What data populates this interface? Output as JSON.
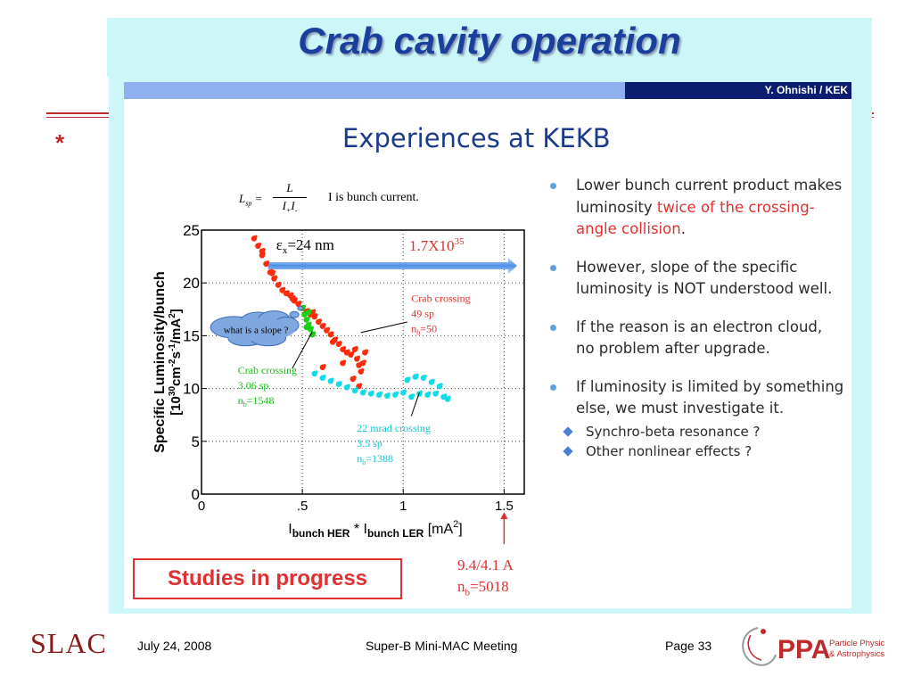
{
  "title": "Crab cavity operation",
  "star": "*",
  "inner_slide": {
    "author": "Y. Ohnishi / KEK",
    "subtitle": "Experiences at KEKB",
    "formula_note": "I is bunch current.",
    "formula": {
      "lhs": "L",
      "lhs_sub": "sp",
      "num": "L",
      "den": "I",
      "den_sub1": "+",
      "den_sub2": "-"
    },
    "bullets": [
      {
        "parts": [
          {
            "text": "Lower bunch current product makes luminosity ",
            "red": false
          },
          {
            "text": "twice of the crossing-angle collision",
            "red": true
          },
          {
            "text": ".",
            "red": false
          }
        ]
      },
      {
        "parts": [
          {
            "text": "However, slope of the specific luminosity is NOT understood well.",
            "red": false
          }
        ]
      },
      {
        "parts": [
          {
            "text": "If the reason is an electron cloud, no problem after upgrade.",
            "red": false
          }
        ]
      },
      {
        "parts": [
          {
            "text": "If luminosity is limited by something else, we must investigate it.",
            "red": false
          }
        ]
      }
    ],
    "sub_bullets": [
      "Synchro-beta resonance ?",
      "Other nonlinear effects ?"
    ],
    "studies_label": "Studies in progress",
    "target_note": {
      "line1": "9.4/4.1 A",
      "line2_pre": "n",
      "line2_sub": "b",
      "line2_post": "=5018"
    }
  },
  "chart_data": {
    "type": "scatter",
    "xlabel": {
      "I": "I",
      "sub1": "bunch HER",
      "star": " * ",
      "I2": "I",
      "sub2": "bunch LER",
      "unit": " [mA",
      "sup": "2",
      "close": "]"
    },
    "ylabel": {
      "line1": "Specific Luminosity/bunch",
      "line2_pre": "[10",
      "line2_sup1": "30",
      "line2_mid": "cm",
      "line2_sup2": "-2",
      "line2_s": "s",
      "line2_sup3": "-1",
      "line2_post": "/mA",
      "line2_sup4": "2",
      "line2_close": "]"
    },
    "xlim": [
      0,
      1.6
    ],
    "ylim": [
      0,
      25
    ],
    "x_ticks": [
      {
        "v": 0,
        "label": "0"
      },
      {
        "v": 0.5,
        "label": ".5"
      },
      {
        "v": 1,
        "label": "1"
      },
      {
        "v": 1.5,
        "label": "1.5"
      }
    ],
    "y_ticks": [
      {
        "v": 0,
        "label": "0"
      },
      {
        "v": 5,
        "label": "5"
      },
      {
        "v": 10,
        "label": "10"
      },
      {
        "v": 15,
        "label": "15"
      },
      {
        "v": 20,
        "label": "20"
      },
      {
        "v": 25,
        "label": "25"
      }
    ],
    "grid": "dotted",
    "arrow_label": {
      "pre": "ε",
      "sub": "x",
      "post": "=24 nm"
    },
    "lumi_label": {
      "pre": "1.7X10",
      "sup": "35"
    },
    "cloud_label": "what is a slope ?",
    "series": [
      {
        "name": "Crab crossing",
        "detail1": "49 sp",
        "detail2_pre": "n",
        "detail2_sub": "b",
        "detail2_post": "=50",
        "color": "#ff2a0a",
        "points": [
          [
            0.26,
            24.2
          ],
          [
            0.28,
            23.5
          ],
          [
            0.3,
            22.6
          ],
          [
            0.32,
            21.8
          ],
          [
            0.34,
            21.0
          ],
          [
            0.36,
            20.4
          ],
          [
            0.38,
            19.8
          ],
          [
            0.4,
            19.3
          ],
          [
            0.42,
            19.0
          ],
          [
            0.44,
            18.8
          ],
          [
            0.46,
            18.3
          ],
          [
            0.48,
            18.0
          ],
          [
            0.5,
            17.6
          ],
          [
            0.52,
            17.3
          ],
          [
            0.54,
            17.0
          ],
          [
            0.56,
            16.8
          ],
          [
            0.58,
            16.3
          ],
          [
            0.6,
            15.9
          ],
          [
            0.62,
            15.5
          ],
          [
            0.64,
            15.1
          ],
          [
            0.66,
            14.6
          ],
          [
            0.68,
            14.2
          ],
          [
            0.7,
            13.7
          ],
          [
            0.72,
            13.4
          ],
          [
            0.74,
            13.2
          ],
          [
            0.76,
            13.7
          ],
          [
            0.77,
            12.8
          ],
          [
            0.78,
            12.2
          ],
          [
            0.79,
            11.6
          ],
          [
            0.8,
            12.4
          ],
          [
            0.81,
            13.4
          ],
          [
            0.3,
            23.0
          ],
          [
            0.35,
            20.9
          ],
          [
            0.45,
            18.5
          ],
          [
            0.55,
            17.2
          ],
          [
            0.65,
            14.4
          ],
          [
            0.6,
            12.0
          ],
          [
            0.7,
            12.4
          ],
          [
            0.75,
            10.9
          ],
          [
            0.78,
            10.2
          ]
        ]
      },
      {
        "name": "Crab crossing",
        "detail1": "3.06 sp",
        "detail2_pre": "n",
        "detail2_sub": "b",
        "detail2_post": "=1548",
        "color": "#16d016",
        "points": [
          [
            0.5,
            17.6
          ],
          [
            0.51,
            17.0
          ],
          [
            0.52,
            16.5
          ],
          [
            0.53,
            16.0
          ],
          [
            0.54,
            15.6
          ],
          [
            0.55,
            15.1
          ],
          [
            0.52,
            15.8
          ],
          [
            0.53,
            17.2
          ]
        ]
      },
      {
        "name": "22 mrad crossing",
        "detail1": "3.5 sp",
        "detail2_pre": "n",
        "detail2_sub": "b",
        "detail2_post": "=1388",
        "color": "#10dce6",
        "points": [
          [
            0.56,
            11.4
          ],
          [
            0.6,
            11.0
          ],
          [
            0.64,
            10.7
          ],
          [
            0.68,
            10.4
          ],
          [
            0.72,
            10.1
          ],
          [
            0.76,
            9.8
          ],
          [
            0.8,
            9.6
          ],
          [
            0.84,
            9.5
          ],
          [
            0.88,
            9.4
          ],
          [
            0.92,
            9.3
          ],
          [
            0.96,
            9.4
          ],
          [
            1.0,
            9.6
          ],
          [
            1.04,
            9.2
          ],
          [
            1.08,
            9.5
          ],
          [
            1.12,
            9.4
          ],
          [
            1.16,
            9.5
          ],
          [
            1.2,
            9.2
          ],
          [
            1.22,
            9.0
          ],
          [
            1.1,
            11.0
          ],
          [
            1.14,
            10.6
          ],
          [
            1.18,
            10.2
          ],
          [
            1.02,
            10.8
          ],
          [
            1.06,
            11.1
          ]
        ]
      }
    ]
  },
  "footer": {
    "org": "SLAC",
    "date": "July 24, 2008",
    "meeting": "Super-B Mini-MAC Meeting",
    "page": "Page 33",
    "ppa_text": "PPA",
    "ppa_line1": "Particle Physics",
    "ppa_line2": "& Astrophysics",
    "colors": {
      "brand_red": "#8a1a1a",
      "ppa_red": "#c0282a"
    }
  }
}
